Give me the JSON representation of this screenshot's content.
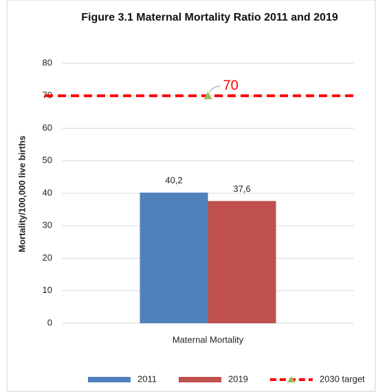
{
  "chart_data": {
    "type": "bar",
    "title": "Figure 3.1 Maternal Mortality Ratio 2011 and 2019",
    "y_label": "Mortality/100,000 live births",
    "categories": [
      "Maternal Mortality"
    ],
    "series": [
      {
        "name": "2011",
        "color": "#4f81bd",
        "kind": "bar",
        "values": [
          40.2
        ],
        "value_labels": [
          "40,2"
        ]
      },
      {
        "name": "2019",
        "color": "#c0504d",
        "kind": "bar",
        "values": [
          37.6
        ],
        "value_labels": [
          "37,6"
        ]
      },
      {
        "name": "2030 target",
        "color": "#ff0000",
        "kind": "line",
        "dashed": true,
        "marker_color": "#9bbb59",
        "values": [
          70
        ],
        "value_labels": [
          "70"
        ]
      }
    ],
    "ylim": [
      0,
      80
    ],
    "yticks": [
      0,
      10,
      20,
      30,
      40,
      50,
      60,
      70,
      80
    ],
    "grid": true,
    "legend": "bottom"
  }
}
